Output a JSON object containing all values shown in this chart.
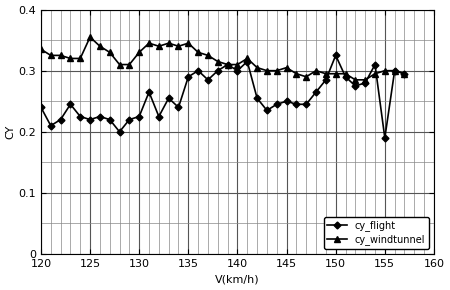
{
  "cy_flight_x": [
    120,
    121,
    122,
    123,
    124,
    125,
    126,
    127,
    128,
    129,
    130,
    131,
    132,
    133,
    134,
    135,
    136,
    137,
    138,
    139,
    140,
    141,
    142,
    143,
    144,
    145,
    146,
    147,
    148,
    149,
    150,
    151,
    152,
    153,
    154,
    155,
    156,
    157
  ],
  "cy_flight_y": [
    0.24,
    0.21,
    0.22,
    0.245,
    0.225,
    0.22,
    0.225,
    0.22,
    0.2,
    0.22,
    0.225,
    0.265,
    0.225,
    0.255,
    0.24,
    0.29,
    0.3,
    0.285,
    0.3,
    0.31,
    0.3,
    0.315,
    0.255,
    0.235,
    0.245,
    0.25,
    0.245,
    0.245,
    0.265,
    0.285,
    0.325,
    0.29,
    0.275,
    0.28,
    0.31,
    0.19,
    0.3,
    0.295
  ],
  "cy_windtunnel_x": [
    120,
    121,
    122,
    123,
    124,
    125,
    126,
    127,
    128,
    129,
    130,
    131,
    132,
    133,
    134,
    135,
    136,
    137,
    138,
    139,
    140,
    141,
    142,
    143,
    144,
    145,
    146,
    147,
    148,
    149,
    150,
    151,
    152,
    153,
    154,
    155,
    156,
    157
  ],
  "cy_windtunnel_y": [
    0.335,
    0.325,
    0.325,
    0.32,
    0.32,
    0.355,
    0.34,
    0.33,
    0.31,
    0.31,
    0.33,
    0.345,
    0.34,
    0.345,
    0.34,
    0.345,
    0.33,
    0.325,
    0.315,
    0.31,
    0.31,
    0.32,
    0.305,
    0.3,
    0.3,
    0.305,
    0.295,
    0.29,
    0.3,
    0.295,
    0.295,
    0.295,
    0.285,
    0.285,
    0.295,
    0.3,
    0.3,
    0.295
  ],
  "xlim": [
    120,
    160
  ],
  "ylim": [
    0,
    0.4
  ],
  "xlabel": "V(km/h)",
  "ylabel": "CY",
  "xticks": [
    120,
    125,
    130,
    135,
    140,
    145,
    150,
    155,
    160
  ],
  "yticks": [
    0,
    0.1,
    0.2,
    0.3,
    0.4
  ],
  "ytick_labels": [
    "0",
    "0.1",
    "0.2",
    "0.3",
    "0.4"
  ],
  "legend_flight": "cy_flight",
  "legend_windtunnel": "cy_windtunnel",
  "line_color": "#000000",
  "bg_color": "#ffffff",
  "grid_color": "#555555",
  "minor_grid_color": "#888888"
}
